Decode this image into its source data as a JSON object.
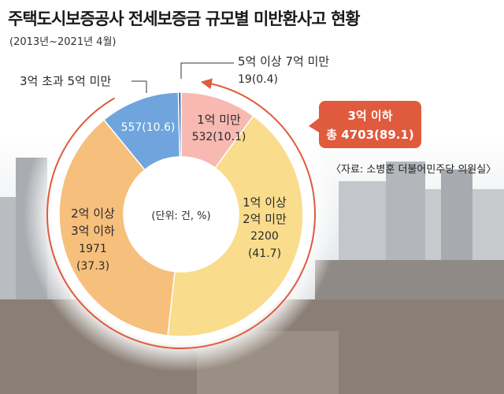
{
  "header": {
    "title": "주택도시보증공사 전세보증금 규모별 미반환사고 현황",
    "subtitle": "(2013년~2021년 4월)"
  },
  "source": "〈자료: 소병훈 더불어민주당 의원실〉",
  "callout": {
    "line1": "3억 이하",
    "line2": "총 4703(89.1)",
    "color": "#e05a3d"
  },
  "chart_data": {
    "type": "pie",
    "unit_label": "(단위: 건, %)",
    "segments": [
      {
        "key": "s1",
        "label": "1억 미만",
        "value": 532,
        "percent": 10.1,
        "value_text": "532(10.1)",
        "color": "#f7b9b2"
      },
      {
        "key": "s2",
        "label_lines": [
          "1억 이상",
          "2억 미만"
        ],
        "value": 2200,
        "percent": 41.7,
        "value_text": "2200",
        "percent_text": "(41.7)",
        "color": "#f9dc8c"
      },
      {
        "key": "s3",
        "label_lines": [
          "2억 이상",
          "3억 이하"
        ],
        "value": 1971,
        "percent": 37.3,
        "value_text": "1971",
        "percent_text": "(37.3)",
        "color": "#f7bf7c"
      },
      {
        "key": "s4",
        "label": "3억 초과 5억 미만",
        "value": 557,
        "percent": 10.6,
        "value_text": "557(10.6)",
        "color": "#6fa5dc"
      },
      {
        "key": "s5",
        "label": "5억 이상 7억 미만",
        "value": 19,
        "percent": 0.4,
        "value_text": "19(0.4)",
        "color": "#1f5fa8"
      }
    ]
  }
}
